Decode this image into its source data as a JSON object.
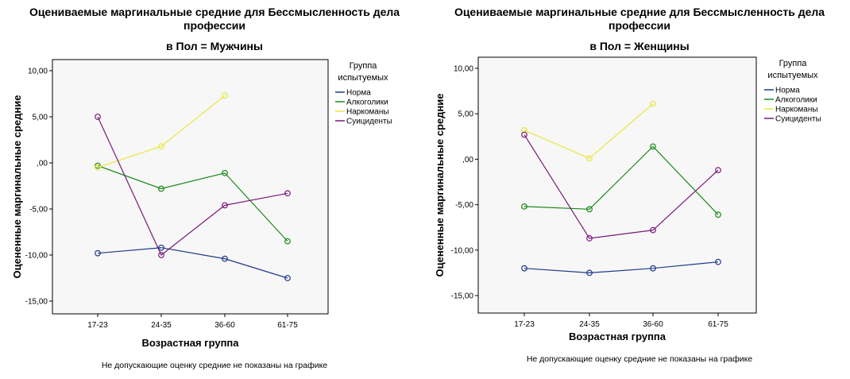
{
  "chart_data": [
    {
      "type": "line",
      "title_lines": [
        "Оцениваемые маргинальные средние для Бессмысленность дела",
        "профессии"
      ],
      "subtitle": "в Пол = Мужчины",
      "xlabel": "Возрастная группа",
      "ylabel": "Оцененные маргинальные средние",
      "categories": [
        "17-23",
        "24-35",
        "36-60",
        "61-75"
      ],
      "y_ticks": [
        "10,00",
        "5,00",
        ",00",
        "-5,00",
        "-10,00",
        "-15,00"
      ],
      "ylim": [
        -16.5,
        11.5
      ],
      "legend_title_lines": [
        "Группа",
        "испытуемых"
      ],
      "legend_position": "right",
      "footnote": "Не допускающие оценку средние не показаны на графике",
      "series": [
        {
          "name": "Норма",
          "color": "#1f3a8a",
          "values": [
            -9.8,
            -9.2,
            -10.4,
            -12.5
          ]
        },
        {
          "name": "Алкоголики",
          "color": "#1a8a1a",
          "values": [
            -0.3,
            -2.8,
            -1.1,
            -8.5
          ]
        },
        {
          "name": "Наркоманы",
          "color": "#e8e840",
          "values": [
            -0.5,
            1.8,
            7.3,
            null
          ]
        },
        {
          "name": "Суициденты",
          "color": "#7a1a7a",
          "values": [
            5.0,
            -10.0,
            -4.6,
            -3.3
          ]
        }
      ]
    },
    {
      "type": "line",
      "title_lines": [
        "Оцениваемые маргинальные средние для Бессмысленность дела",
        "профессии"
      ],
      "subtitle": "в Пол = Женщины",
      "xlabel": "Возрастная группа",
      "ylabel": "Оцененные маргинальные средние",
      "categories": [
        "17-23",
        "24-35",
        "36-60",
        "61-75"
      ],
      "y_ticks": [
        "10,00",
        "5,00",
        ",00",
        "-5,00",
        "-10,00",
        "-15,00"
      ],
      "ylim": [
        -16.5,
        11.5
      ],
      "legend_title_lines": [
        "Группа",
        "испытуемых"
      ],
      "legend_position": "right",
      "footnote": "Не допускающие оценку средние не показаны на графике",
      "series": [
        {
          "name": "Норма",
          "color": "#1f3a8a",
          "values": [
            -12.0,
            -12.5,
            -12.0,
            -11.3
          ]
        },
        {
          "name": "Алкоголики",
          "color": "#1a8a1a",
          "values": [
            -5.2,
            -5.5,
            1.4,
            -6.1
          ]
        },
        {
          "name": "Наркоманы",
          "color": "#e8e840",
          "values": [
            3.2,
            0.1,
            6.1,
            null
          ]
        },
        {
          "name": "Суициденты",
          "color": "#7a1a7a",
          "values": [
            2.7,
            -8.7,
            -7.8,
            -1.2
          ]
        }
      ]
    }
  ]
}
